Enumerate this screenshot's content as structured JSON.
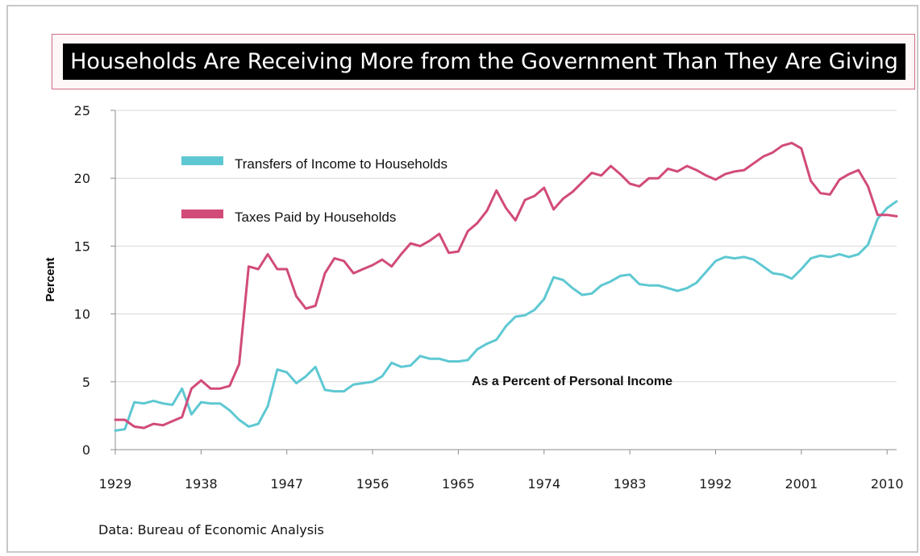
{
  "source_note": "Data: Bureau of Economic Analysis",
  "chart_data": {
    "type": "line",
    "title": "Households Are Receiving More from the Government Than They Are Giving",
    "ylabel": "Percent",
    "xlabel": "",
    "annotation": "As a Percent of Personal Income",
    "ylim": [
      0,
      25
    ],
    "xlim": [
      1929,
      2011
    ],
    "y_ticks": [
      0,
      5,
      10,
      15,
      20,
      25
    ],
    "x_ticks": [
      1929,
      1938,
      1947,
      1956,
      1965,
      1974,
      1983,
      1992,
      2001,
      2010
    ],
    "grid": "horizontal",
    "legend_position": "upper-left",
    "x": [
      1929,
      1930,
      1931,
      1932,
      1933,
      1934,
      1935,
      1936,
      1937,
      1938,
      1939,
      1940,
      1941,
      1942,
      1943,
      1944,
      1945,
      1946,
      1947,
      1948,
      1949,
      1950,
      1951,
      1952,
      1953,
      1954,
      1955,
      1956,
      1957,
      1958,
      1959,
      1960,
      1961,
      1962,
      1963,
      1964,
      1965,
      1966,
      1967,
      1968,
      1969,
      1970,
      1971,
      1972,
      1973,
      1974,
      1975,
      1976,
      1977,
      1978,
      1979,
      1980,
      1981,
      1982,
      1983,
      1984,
      1985,
      1986,
      1987,
      1988,
      1989,
      1990,
      1991,
      1992,
      1993,
      1994,
      1995,
      1996,
      1997,
      1998,
      1999,
      2000,
      2001,
      2002,
      2003,
      2004,
      2005,
      2006,
      2007,
      2008,
      2009,
      2010,
      2011
    ],
    "series": [
      {
        "name": "Transfers of Income to Households",
        "color": "#5ec8d2",
        "values": [
          1.4,
          1.5,
          3.5,
          3.4,
          3.6,
          3.4,
          3.3,
          4.5,
          2.6,
          3.5,
          3.4,
          3.4,
          2.9,
          2.2,
          1.7,
          1.9,
          3.2,
          5.9,
          5.7,
          4.9,
          5.4,
          6.1,
          4.4,
          4.3,
          4.3,
          4.8,
          4.9,
          5.0,
          5.4,
          6.4,
          6.1,
          6.2,
          6.9,
          6.7,
          6.7,
          6.5,
          6.5,
          6.6,
          7.4,
          7.8,
          8.1,
          9.1,
          9.8,
          9.9,
          10.3,
          11.1,
          12.7,
          12.5,
          11.9,
          11.4,
          11.5,
          12.1,
          12.4,
          12.8,
          12.9,
          12.2,
          12.1,
          12.1,
          11.9,
          11.7,
          11.9,
          12.3,
          13.1,
          13.9,
          14.2,
          14.1,
          14.2,
          14.0,
          13.5,
          13.0,
          12.9,
          12.6,
          13.3,
          14.1,
          14.3,
          14.2,
          14.4,
          14.2,
          14.4,
          15.1,
          17.0,
          17.8,
          18.3
        ]
      },
      {
        "name": "Taxes Paid by Households",
        "color": "#d14b79",
        "values": [
          2.2,
          2.2,
          1.7,
          1.6,
          1.9,
          1.8,
          2.1,
          2.4,
          4.5,
          5.1,
          4.5,
          4.5,
          4.7,
          6.3,
          13.5,
          13.3,
          14.4,
          13.3,
          13.3,
          11.3,
          10.4,
          10.6,
          13.0,
          14.1,
          13.9,
          13.0,
          13.3,
          13.6,
          14.0,
          13.5,
          14.4,
          15.2,
          15.0,
          15.4,
          15.9,
          14.5,
          14.6,
          16.1,
          16.7,
          17.6,
          19.1,
          17.8,
          16.9,
          18.4,
          18.7,
          19.3,
          17.7,
          18.5,
          19.0,
          19.7,
          20.4,
          20.2,
          20.9,
          20.3,
          19.6,
          19.4,
          20.0,
          20.0,
          20.7,
          20.5,
          20.9,
          20.6,
          20.2,
          19.9,
          20.3,
          20.5,
          20.6,
          21.1,
          21.6,
          21.9,
          22.4,
          22.6,
          22.2,
          19.8,
          18.9,
          18.8,
          19.9,
          20.3,
          20.6,
          19.4,
          17.3,
          17.3,
          17.2
        ]
      }
    ]
  }
}
